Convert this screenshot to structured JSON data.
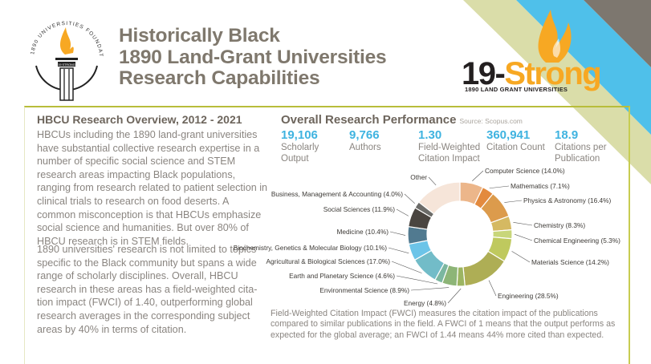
{
  "header": {
    "title_lines": [
      "Historically Black",
      "1890 Land-Grant Universities",
      "Research Capabilities"
    ],
    "foundation_logo_text": "1890 UNIVERSITIES FOUNDATION",
    "foundation_logo_banner": "19 STRONG",
    "brand_black": "19-",
    "brand_orange": "Strong",
    "brand_sub": "1890 LAND GRANT UNIVERSITIES"
  },
  "colors": {
    "title_gray": "#7f786d",
    "accent_blue": "#3fb3e0",
    "brand_orange": "#f7a823",
    "border_olive": "#b8bd3a",
    "stripe_khaki": "#d4d79a",
    "stripe_blue": "#4fc0ea",
    "stripe_gray": "#7d776f"
  },
  "overview": {
    "heading": "HBCU Research Overview, 2012 - 2021",
    "paragraph1": "HBCUs including the 1890 land-grant universities have substantial collective research expertise in a number of specific social science and STEM research areas impacting Black populations, ranging from research related to patient selection in clinical trials to research on food deserts. A common misconception is that HBCUs emphasize social science and humanities. But over 80% of HBCU research is in STEM fields.",
    "paragraph2": "1890 universities' research is not limited to topics specific to the Black community but spans a wide range of scholarly disciplines. Overall, HBCU research in these areas has a field-weighted cita-tion impact (FWCI) of 1.40, outperforming global research averages in the corresponding subject areas by 40% in terms of citation."
  },
  "performance": {
    "heading": "Overall Research Performance",
    "source": "Source: Scopus.com",
    "stats": [
      {
        "value": "19,106",
        "label": "Scholarly Output"
      },
      {
        "value": "9,766",
        "label": "Authors"
      },
      {
        "value": "1.30",
        "label": "Field-Weighted Citation Impact"
      },
      {
        "value": "360,941",
        "label": "Citation Count"
      },
      {
        "value": "18.9",
        "label": "Citations per Publication"
      }
    ],
    "note": "Field-Weighted Citation Impact (FWCI) measures the citation impact of the publications compared to similar publications in the field.  A FWCI of 1 means that the output performs as expected for the global average; an FWCI of 1.44 means 44% more cited than expected."
  },
  "chart_data": {
    "type": "pie",
    "donut": true,
    "slices": [
      {
        "label": "Computer Science (14.0%)",
        "value": 14.0,
        "color": "#ecb68a"
      },
      {
        "label": "Mathematics (7.1%)",
        "value": 7.1,
        "color": "#e38a3e"
      },
      {
        "label": "Physics & Astronomy (16.4%)",
        "value": 16.4,
        "color": "#dc9b4c"
      },
      {
        "label": "Chemistry (8.3%)",
        "value": 8.3,
        "color": "#d5b962"
      },
      {
        "label": "Chemical Engineering (5.3%)",
        "value": 5.3,
        "color": "#c8d67a"
      },
      {
        "label": "Materials Science (14.2%)",
        "value": 14.2,
        "color": "#bfc95e"
      },
      {
        "label": "Engineering (28.5%)",
        "value": 28.5,
        "color": "#aeae55"
      },
      {
        "label": "Energy (4.8%)",
        "value": 4.8,
        "color": "#9cb562"
      },
      {
        "label": "Environmental Science (8.9%)",
        "value": 8.9,
        "color": "#8db577"
      },
      {
        "label": "Earth and Planetary Science (4.6%)",
        "value": 4.6,
        "color": "#7bb7a0"
      },
      {
        "label": "Agricultural & Biological Sciences (17.0%)",
        "value": 17.0,
        "color": "#72bcc8"
      },
      {
        "label": "Biochemistry, Genetics & Molecular Biology (10.1%)",
        "value": 10.1,
        "color": "#6cc4e8"
      },
      {
        "label": "Medicine (10.4%)",
        "value": 10.4,
        "color": "#517a90"
      },
      {
        "label": "Social Sciences (11.9%)",
        "value": 11.9,
        "color": "#4a4540"
      },
      {
        "label": "Business, Management & Accounting (4.0%)",
        "value": 4.0,
        "color": "#6b6b68"
      },
      {
        "label": "Other",
        "value": 28,
        "color": "#f6e5d9"
      }
    ]
  }
}
